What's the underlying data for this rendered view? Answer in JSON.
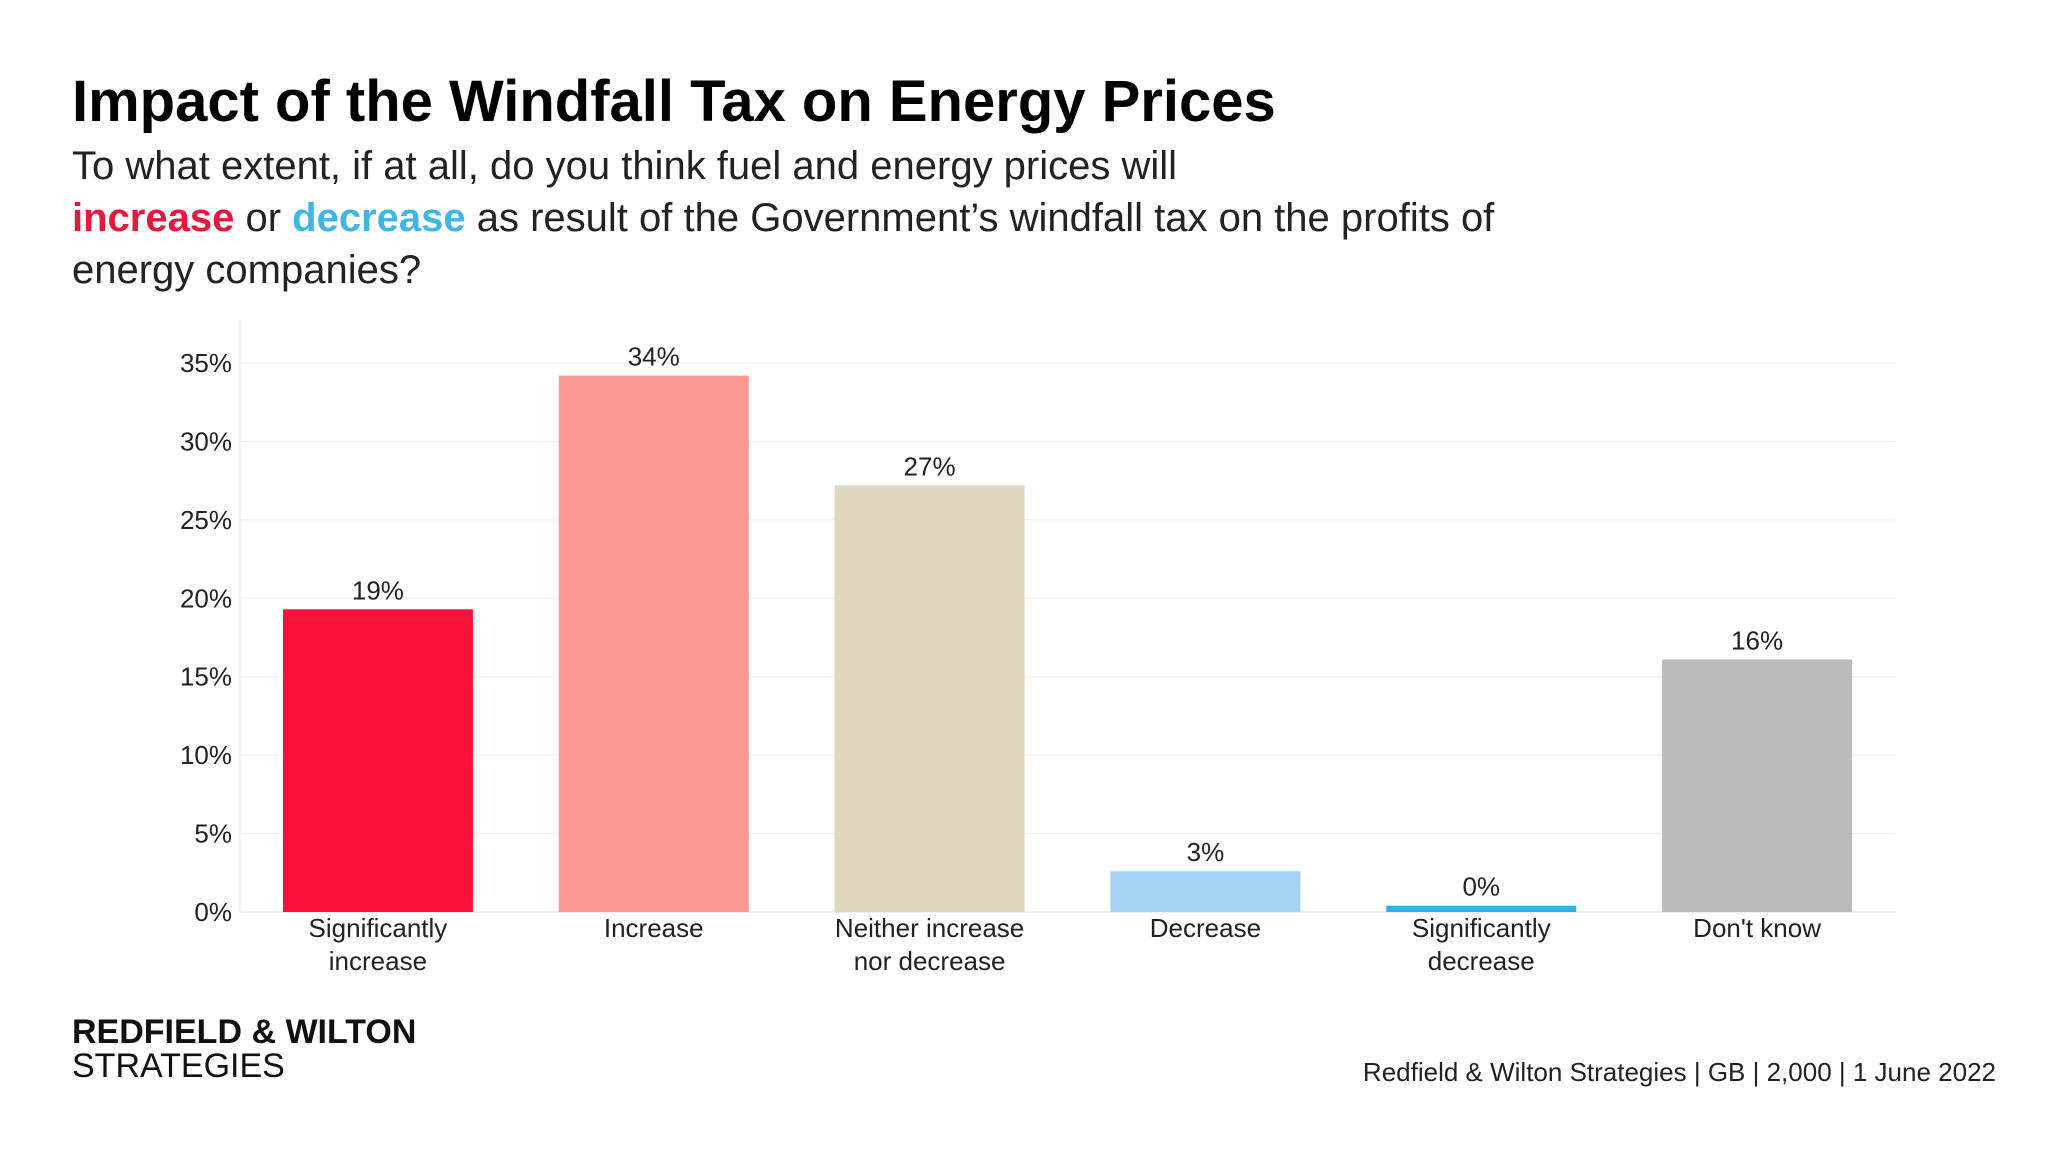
{
  "title": "Impact of the Windfall Tax on Energy Prices",
  "question": {
    "part1": "To what extent, if at all, do you think fuel and energy prices will",
    "highlight_increase": "increase",
    "mid": " or ",
    "highlight_decrease": "decrease",
    "part2": " as result of the Government’s windfall tax on the profits of energy companies?"
  },
  "brand": {
    "line1": "REDFIELD & WILTON",
    "line2": "STRATEGIES"
  },
  "source": "Redfield & Wilton Strategies | GB | 2,000 | 1 June 2022",
  "colors": {
    "increase_accent": "#e8173d",
    "decrease_accent": "#41b6e6"
  },
  "chart_data": {
    "type": "bar",
    "categories": [
      [
        "Significantly",
        "increase"
      ],
      [
        "Increase"
      ],
      [
        "Neither increase",
        "nor decrease"
      ],
      [
        "Decrease"
      ],
      [
        "Significantly",
        "decrease"
      ],
      [
        "Don't know"
      ]
    ],
    "values": [
      19.3,
      34.2,
      27.2,
      2.6,
      0.4,
      16.1
    ],
    "data_labels": [
      "19%",
      "34%",
      "27%",
      "3%",
      "0%",
      "16%"
    ],
    "bar_colors": [
      "#fa133b",
      "#fb9893",
      "#ded8bf",
      "#a6d3f3",
      "#28b7ed",
      "#bbbabb"
    ],
    "ylim": [
      0,
      35
    ],
    "yticks": [
      0,
      5,
      10,
      15,
      20,
      25,
      30,
      35
    ],
    "ytick_labels": [
      "0%",
      "5%",
      "10%",
      "15%",
      "20%",
      "25%",
      "30%",
      "35%"
    ],
    "grid": true
  }
}
